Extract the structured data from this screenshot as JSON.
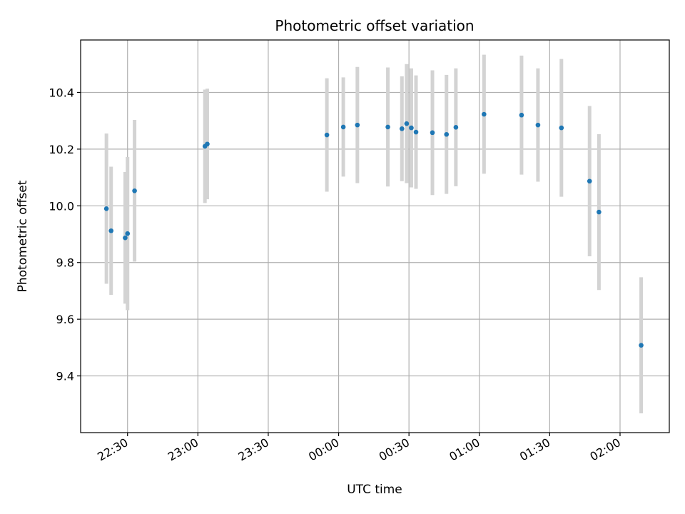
{
  "chart_data": {
    "type": "scatter",
    "title": "Photometric offset variation",
    "xlabel": "UTC time",
    "ylabel": "Photometric offset",
    "x_tick_labels": [
      "22:30",
      "23:00",
      "23:30",
      "00:00",
      "00:30",
      "01:00",
      "01:30",
      "02:00"
    ],
    "y_tick_labels": [
      "9.4",
      "9.6",
      "9.8",
      "10.0",
      "10.2",
      "10.4"
    ],
    "x_ticks": [
      "22:30",
      "23:00",
      "23:30",
      "00:00",
      "00:30",
      "01:00",
      "01:30",
      "02:00"
    ],
    "y_ticks": [
      9.4,
      9.6,
      9.8,
      10.0,
      10.2,
      10.4
    ],
    "xlim": [
      "22:10",
      "02:21"
    ],
    "ylim": [
      9.2,
      10.585
    ],
    "grid": true,
    "point_color": "#1f77b4",
    "errorbar_color": "#d3d3d3",
    "points": [
      {
        "x": "22:21",
        "y": 9.99,
        "err": 0.265
      },
      {
        "x": "22:23",
        "y": 9.912,
        "err": 0.226
      },
      {
        "x": "22:29",
        "y": 9.887,
        "err": 0.232
      },
      {
        "x": "22:30",
        "y": 9.902,
        "err": 0.27
      },
      {
        "x": "22:33",
        "y": 10.053,
        "err": 0.25
      },
      {
        "x": "23:03",
        "y": 10.21,
        "err": 0.2
      },
      {
        "x": "23:04",
        "y": 10.218,
        "err": 0.195
      },
      {
        "x": "23:55",
        "y": 10.25,
        "err": 0.2
      },
      {
        "x": "00:02",
        "y": 10.278,
        "err": 0.175
      },
      {
        "x": "00:08",
        "y": 10.285,
        "err": 0.205
      },
      {
        "x": "00:21",
        "y": 10.278,
        "err": 0.21
      },
      {
        "x": "00:27",
        "y": 10.272,
        "err": 0.185
      },
      {
        "x": "00:29",
        "y": 10.29,
        "err": 0.21
      },
      {
        "x": "00:31",
        "y": 10.275,
        "err": 0.21
      },
      {
        "x": "00:33",
        "y": 10.26,
        "err": 0.2
      },
      {
        "x": "00:40",
        "y": 10.258,
        "err": 0.22
      },
      {
        "x": "00:46",
        "y": 10.252,
        "err": 0.21
      },
      {
        "x": "00:50",
        "y": 10.277,
        "err": 0.208
      },
      {
        "x": "01:02",
        "y": 10.323,
        "err": 0.21
      },
      {
        "x": "01:18",
        "y": 10.32,
        "err": 0.21
      },
      {
        "x": "01:25",
        "y": 10.285,
        "err": 0.2
      },
      {
        "x": "01:35",
        "y": 10.275,
        "err": 0.243
      },
      {
        "x": "01:47",
        "y": 10.087,
        "err": 0.265
      },
      {
        "x": "01:51",
        "y": 9.978,
        "err": 0.275
      },
      {
        "x": "02:09",
        "y": 9.508,
        "err": 0.24
      }
    ]
  }
}
